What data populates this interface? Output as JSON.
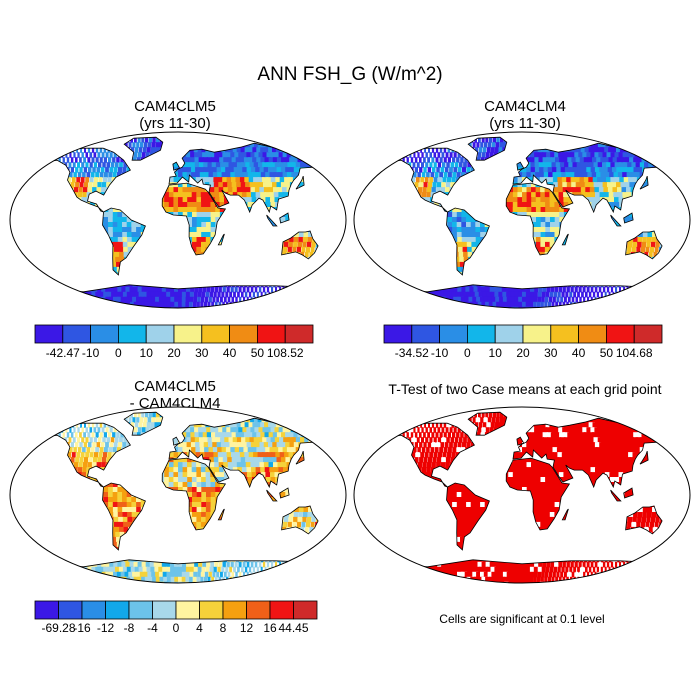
{
  "figure": {
    "title": "ANN FSH_G (W/m^2)"
  },
  "panels": [
    {
      "id": "cam4clm5",
      "title_line1": "CAM4CLM5",
      "title_line2": "(yrs 11-30)",
      "colorbar_labels": [
        "-42.47",
        "-10",
        "0",
        "10",
        "20",
        "30",
        "40",
        "50",
        "108.52"
      ],
      "colors": [
        "#3b18e6",
        "#2f56e2",
        "#2a8ee6",
        "#12b6ea",
        "#9fd2ea",
        "#f7f28a",
        "#f5c01f",
        "#f08c14",
        "#f01414",
        "#cf2a2a"
      ]
    },
    {
      "id": "cam4clm4",
      "title_line1": "CAM4CLM4",
      "title_line2": "(yrs 11-30)",
      "colorbar_labels": [
        "-34.52",
        "-10",
        "0",
        "10",
        "20",
        "30",
        "40",
        "50",
        "104.68"
      ],
      "colors": [
        "#3b18e6",
        "#2f56e2",
        "#2a8ee6",
        "#12b6ea",
        "#9fd2ea",
        "#f7f28a",
        "#f5c01f",
        "#f08c14",
        "#f01414",
        "#cf2a2a"
      ]
    },
    {
      "id": "difference",
      "title_line1": "CAM4CLM5",
      "title_line2": "- CAM4CLM4",
      "colorbar_labels": [
        "-69.28",
        "-16",
        "-12",
        "-8",
        "-4",
        "0",
        "4",
        "8",
        "12",
        "16",
        "44.45"
      ],
      "colors": [
        "#3b18e6",
        "#2f56e2",
        "#2a8ee6",
        "#12a8ea",
        "#6cc3ea",
        "#a8d8ea",
        "#fff4a0",
        "#f5d23a",
        "#f5a010",
        "#f06018",
        "#f01414",
        "#cf2a2a"
      ]
    },
    {
      "id": "ttest",
      "title_line1": "T-Test of two Case means at each grid point",
      "note": "Cells are significant at 0.1 level",
      "sig_color": "#ee0000"
    }
  ]
}
